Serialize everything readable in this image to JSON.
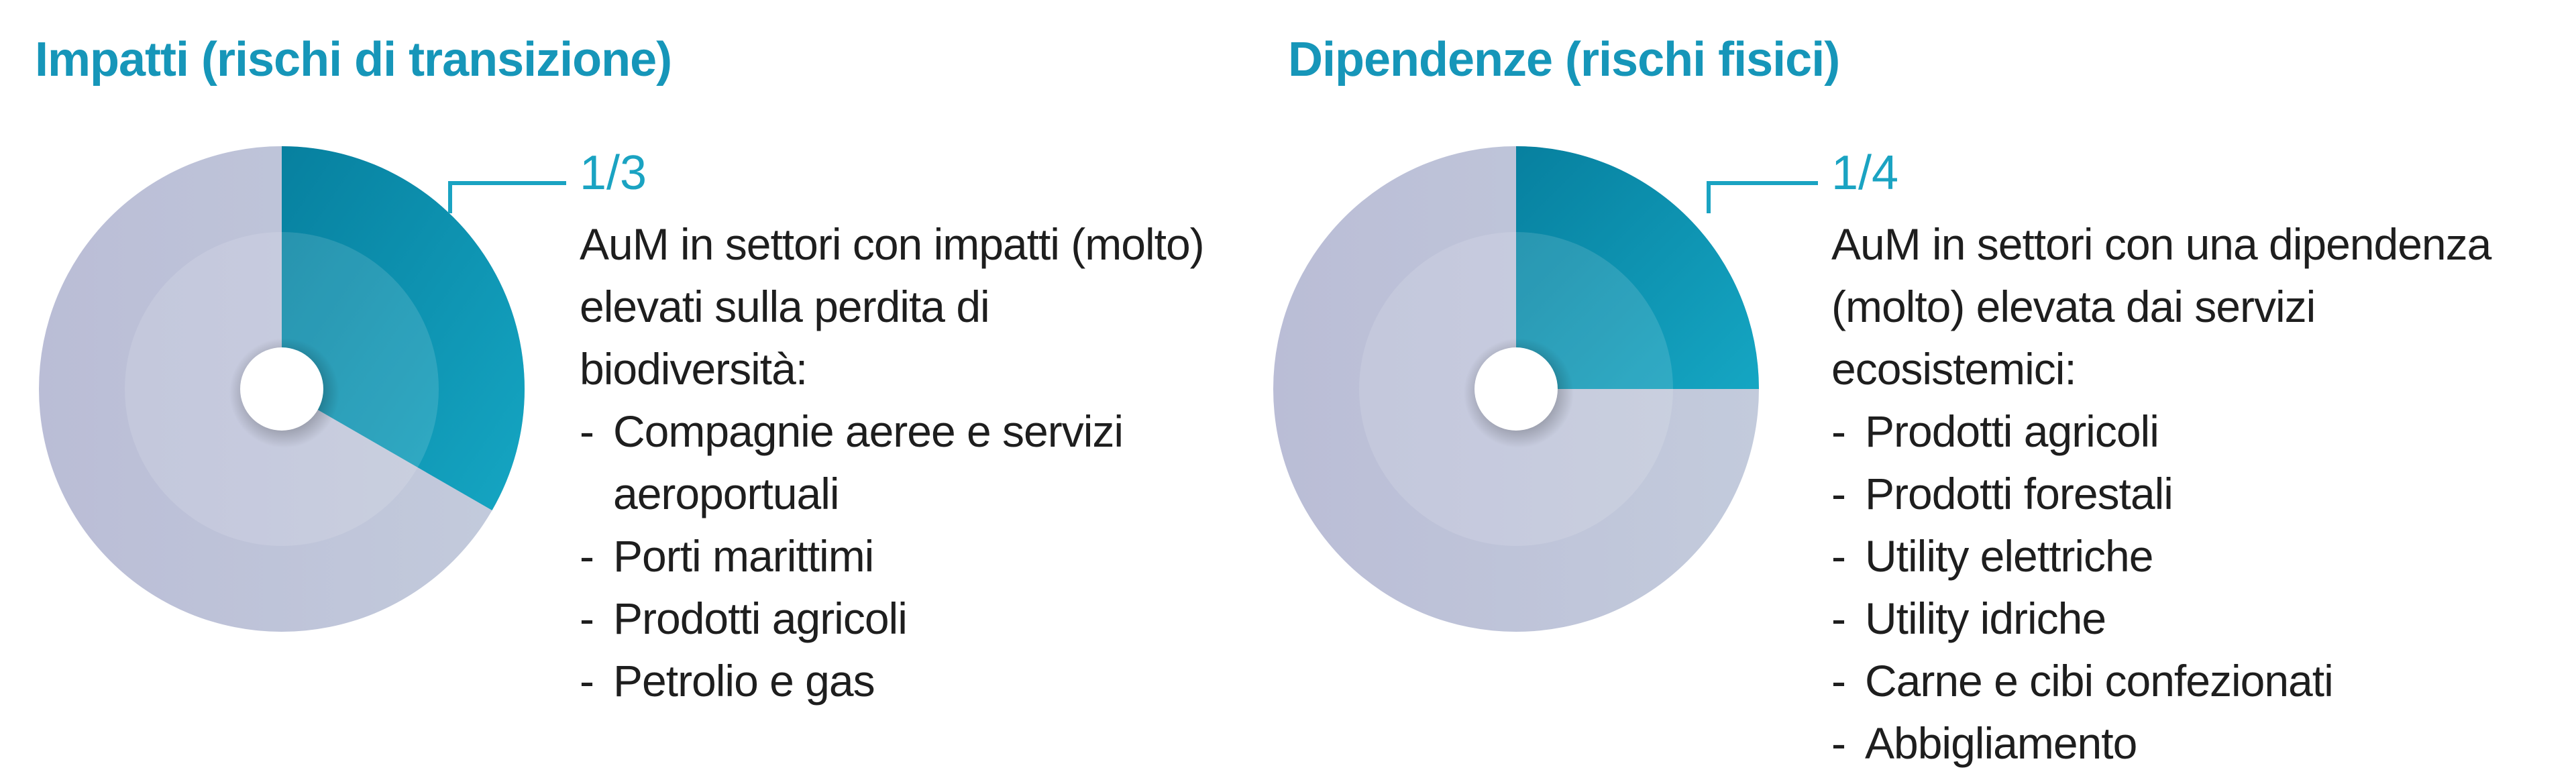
{
  "panels": [
    {
      "title": "Impatti (rischi di transizione)",
      "ratio_label": "1/3",
      "description": "AuM in settori con impatti (molto) elevati sulla perdita di biodiversità:",
      "items": [
        "Compagnie aeree e servizi aeroportuali",
        "Porti marittimi",
        "Prodotti agricoli",
        "Petrolio e gas"
      ]
    },
    {
      "title": "Dipendenze (rischi fisici)",
      "ratio_label": "1/4",
      "description": "AuM in settori con una dipendenza (molto) elevata dai servizi ecosistemici:",
      "items": [
        "Prodotti agricoli",
        "Prodotti forestali",
        "Utility elettriche",
        "Utility idriche",
        "Carne e cibi confezionati",
        "Abbigliamento"
      ]
    }
  ],
  "chart_data": [
    {
      "type": "pie",
      "title": "Impatti (rischi di transizione)",
      "highlighted_fraction": 0.3333,
      "highlight_label": "1/3",
      "colors": {
        "highlight": "#0f94b4",
        "rest": "#bfc2d8"
      }
    },
    {
      "type": "pie",
      "title": "Dipendenze (rischi fisici)",
      "highlighted_fraction": 0.25,
      "highlight_label": "1/4",
      "colors": {
        "highlight": "#0f94b4",
        "rest": "#bfc2d8"
      }
    }
  ]
}
